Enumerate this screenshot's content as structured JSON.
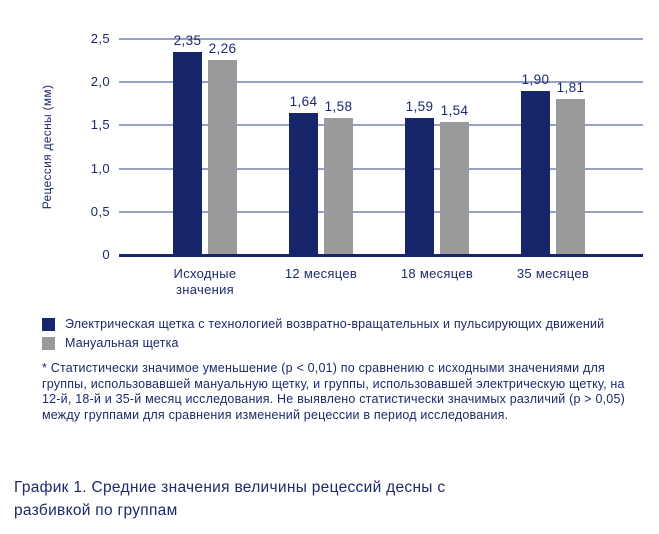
{
  "colors": {
    "navy": "#17266b",
    "gray": "#9a9a9d",
    "gridline": "#96a2c5",
    "text": "#1c2a6b"
  },
  "chart_data": {
    "type": "bar",
    "title": "",
    "xlabel": "",
    "ylabel": "Рецессия десны (мм)",
    "categories": [
      "Исходные\nзначения",
      "12 месяцев",
      "18 месяцев",
      "35 месяцев"
    ],
    "series": [
      {
        "name": "Электрическая щетка с технологией возвратно-вращательных и пульсирующих движений",
        "color": "#17266b",
        "values": [
          2.35,
          1.64,
          1.59,
          1.9
        ],
        "labels": [
          "2,35",
          "1,64",
          "1,59",
          "1,90"
        ]
      },
      {
        "name": "Мануальная щетка",
        "color": "#9a9a9d",
        "values": [
          2.26,
          1.58,
          1.54,
          1.81
        ],
        "labels": [
          "2,26",
          "1,58",
          "1,54",
          "1,81"
        ]
      }
    ],
    "ylim": [
      0,
      2.5
    ],
    "yticks": [
      0,
      0.5,
      1.0,
      1.5,
      2.0,
      2.5
    ],
    "ytick_labels": [
      "0",
      "0,5",
      "1,0",
      "1,5",
      "2,0",
      "2,5"
    ],
    "grid": true,
    "legend_position": "bottom-left"
  },
  "footnote": "* Статистически значимое уменьшение (p < 0,01) по сравнению с исходными значениями для группы, использовавшей мануальную щетку, и группы, использовавшей электрическую щетку, на 12-й, 18-й и 35-й месяц исследования. Не выявлено статистически значимых различий (p > 0,05) между группами для сравнения изменений рецессии в период исследования.",
  "caption": "График 1. Средние значения величины рецессий десны с разбивкой по группам"
}
